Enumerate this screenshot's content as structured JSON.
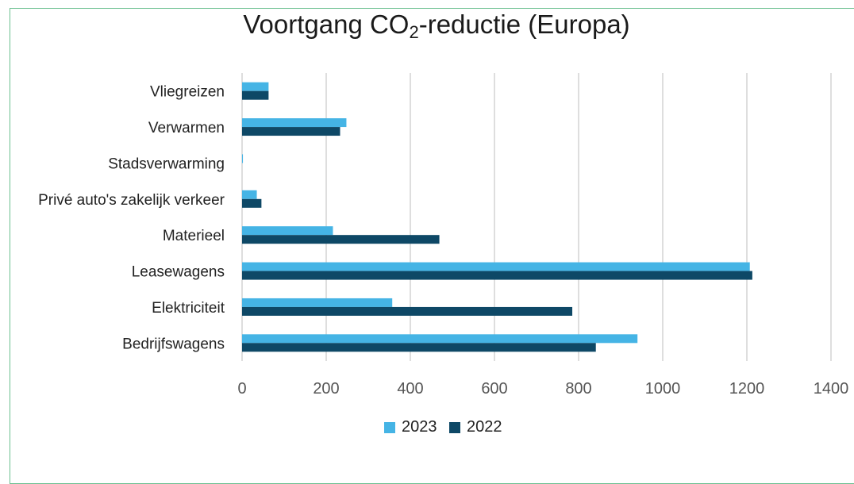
{
  "chart_data": {
    "type": "bar",
    "orientation": "horizontal",
    "title_prefix": "Voortgang CO",
    "title_subscript": "2",
    "title_suffix": "-reductie (Europa)",
    "categories": [
      "Vliegreizen",
      "Verwarmen",
      "Stadsverwarming",
      "Privé auto's zakelijk verkeer",
      "Materieel",
      "Leasewagens",
      "Elektriciteit",
      "Bedrijfswagens"
    ],
    "series": [
      {
        "name": "2023",
        "color": "#45b4e5",
        "values": [
          63,
          248,
          2,
          35,
          216,
          1207,
          357,
          940
        ]
      },
      {
        "name": "2022",
        "color": "#0e4866",
        "values": [
          63,
          233,
          0,
          46,
          469,
          1213,
          785,
          841
        ]
      }
    ],
    "xlim": [
      0,
      1400
    ],
    "xticks": [
      0,
      200,
      400,
      600,
      800,
      1000,
      1200,
      1400
    ],
    "grid": true,
    "legend_position": "bottom"
  }
}
